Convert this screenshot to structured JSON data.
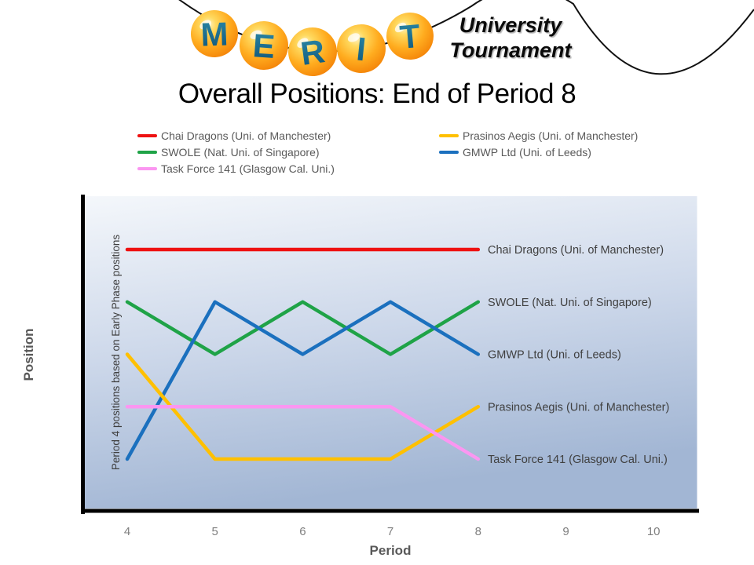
{
  "logo": {
    "letters": [
      "M",
      "E",
      "R",
      "I",
      "T"
    ],
    "subtitle_line1": "University",
    "subtitle_line2": "Tournament",
    "ball_color": "#F7941D",
    "letter_color": "#14638C",
    "string_color": "#111111"
  },
  "chart_data": {
    "type": "line",
    "title": "Overall Positions: End of Period 8",
    "xlabel": "Period",
    "ylabel": "Position",
    "annotation": "Period 4 positions based on Early Phase positions",
    "x": [
      4,
      5,
      6,
      7,
      8
    ],
    "x_ticks": [
      "4",
      "5",
      "6",
      "7",
      "8",
      "9",
      "10"
    ],
    "xlim": [
      4,
      10
    ],
    "ylim_positions": [
      1,
      5
    ],
    "y_axis_inverted": true,
    "grid": false,
    "legend_position": "top",
    "plot_background": {
      "top": "#F4F7FB",
      "bottom": "#A2B6D4"
    },
    "series": [
      {
        "name": "Chai Dragons (Uni. of Manchester)",
        "color": "#EE1111",
        "positions": [
          1,
          1,
          1,
          1,
          1
        ]
      },
      {
        "name": "SWOLE (Nat. Uni. of Singapore)",
        "color": "#1FA347",
        "positions": [
          2,
          3,
          2,
          3,
          2
        ]
      },
      {
        "name": "GMWP Ltd (Uni. of Leeds)",
        "color": "#1B70BE",
        "positions": [
          5,
          2,
          3,
          2,
          3
        ]
      },
      {
        "name": "Prasinos Aegis (Uni. of Manchester)",
        "color": "#FFC000",
        "positions": [
          3,
          5,
          5,
          5,
          4
        ]
      },
      {
        "name": "Task Force 141 (Glasgow Cal. Uni.)",
        "color": "#FB96F1",
        "positions": [
          4,
          4,
          4,
          4,
          5
        ]
      }
    ]
  }
}
